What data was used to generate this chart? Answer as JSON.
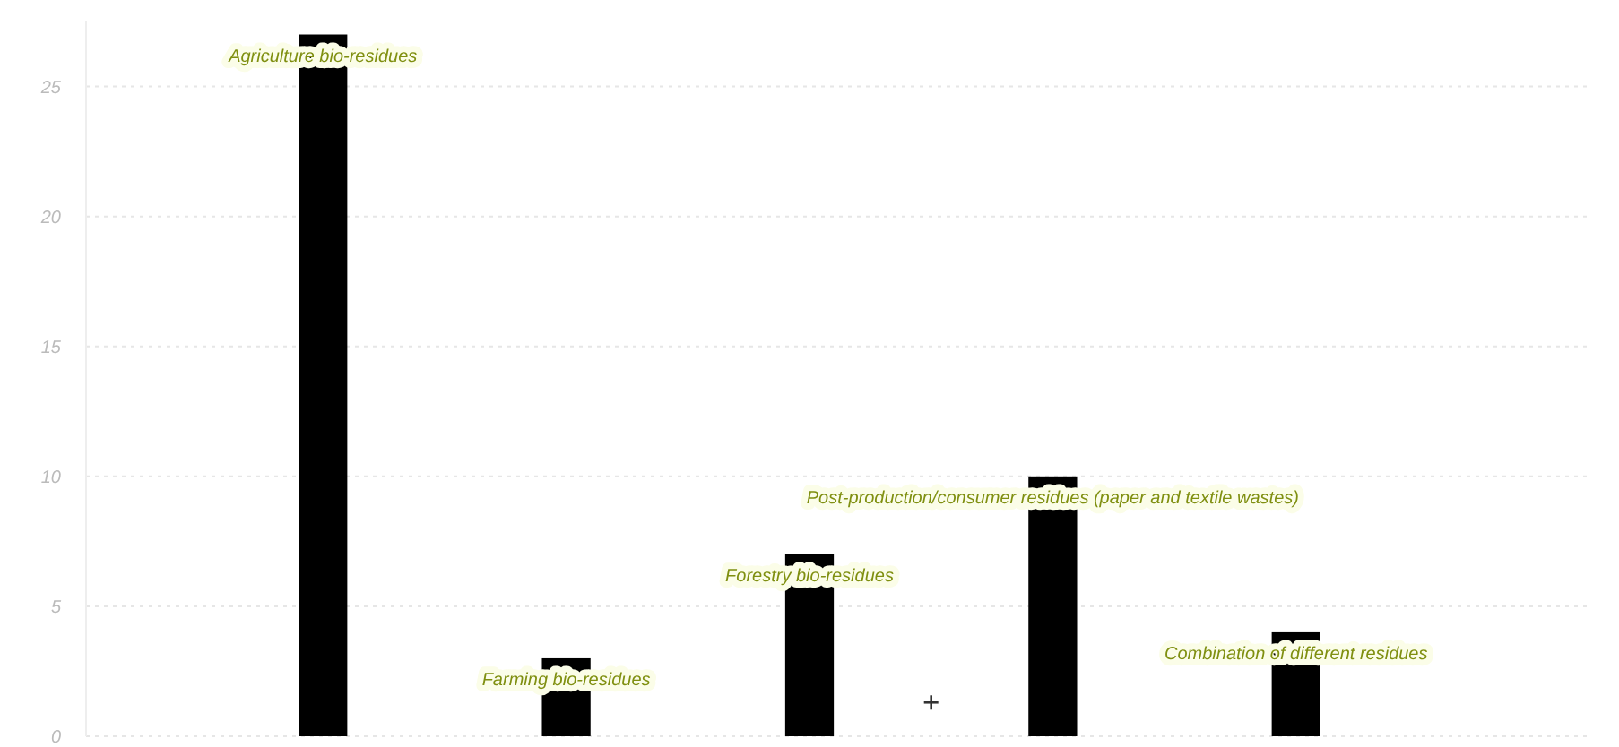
{
  "chart_data": {
    "type": "bar",
    "categories": [
      "Agriculture bio-residues",
      "Farming bio-residues",
      "Forestry bio-residues",
      "Post-production/consumer residues (paper and textile wastes)",
      "Combination of different residues"
    ],
    "values": [
      27,
      3,
      7,
      10,
      4
    ],
    "color": "#000000",
    "ylim": [
      0,
      27.5
    ],
    "yticks": [
      0,
      5,
      10,
      15,
      20,
      25
    ],
    "grid": "y"
  }
}
